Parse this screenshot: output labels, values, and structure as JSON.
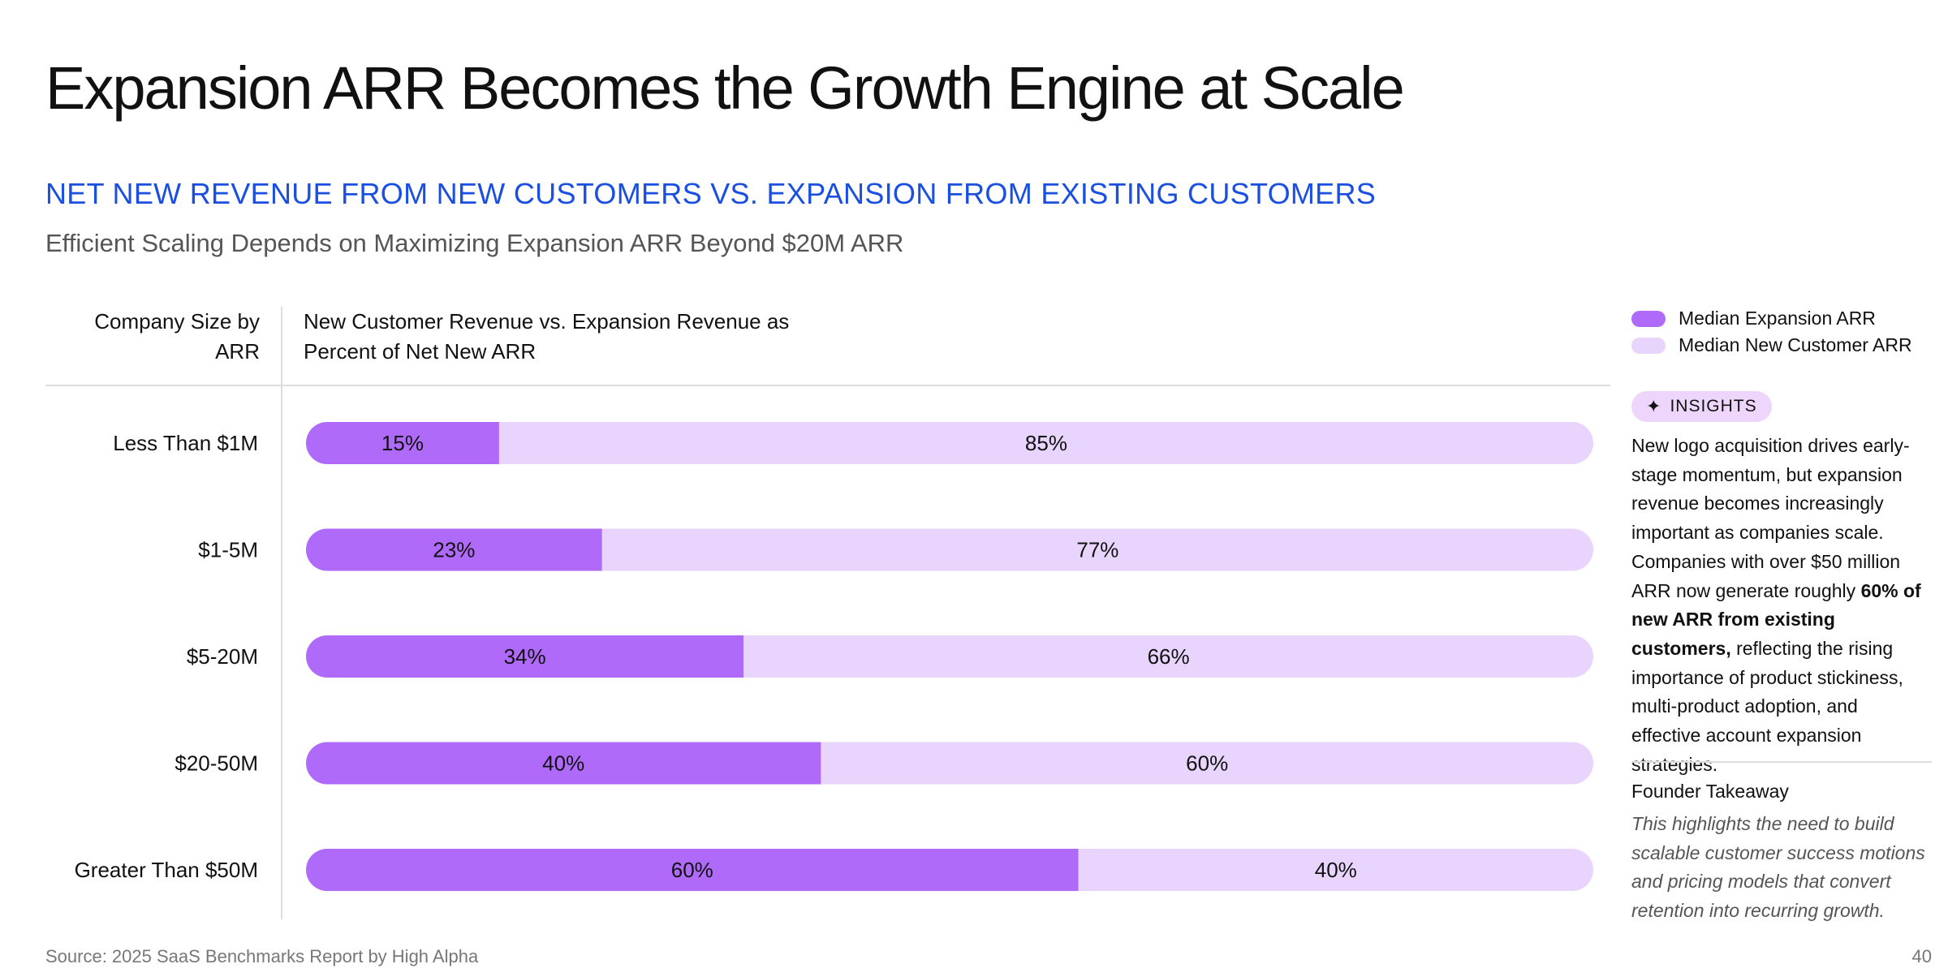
{
  "header": {
    "title": "Expansion ARR Becomes the Growth Engine at Scale",
    "subtitle": "NET NEW REVENUE FROM NEW CUSTOMERS VS. EXPANSION FROM EXISTING CUSTOMERS",
    "tagline": "Efficient Scaling Depends on Maximizing Expansion ARR Beyond $20M ARR"
  },
  "columns": {
    "left": "Company Size by ARR",
    "right": "New Customer Revenue vs. Expansion Revenue as Percent of Net New ARR"
  },
  "colors": {
    "expansion": "#b06af9",
    "new_customer": "#e8d4fc",
    "subtitle_blue": "#1a4fe0"
  },
  "chart_data": {
    "type": "bar",
    "stacked": true,
    "orientation": "horizontal",
    "unit": "percent",
    "categories": [
      "Less Than  $1M",
      "$1-5M",
      "$5-20M",
      "$20-50M",
      "Greater Than $50M"
    ],
    "series": [
      {
        "name": "Median Expansion ARR",
        "values": [
          15,
          23,
          34,
          40,
          60
        ]
      },
      {
        "name": "Median New Customer ARR",
        "values": [
          85,
          77,
          66,
          60,
          40
        ]
      }
    ],
    "xlim": [
      0,
      100
    ]
  },
  "legend": [
    {
      "label": "Median Expansion ARR"
    },
    {
      "label": "Median New Customer ARR"
    }
  ],
  "insights": {
    "badge": "INSIGHTS",
    "text_part1": "New logo acquisition drives early-stage momentum, but expansion revenue becomes increasingly important as companies scale. Companies with over $50 million ARR now generate roughly ",
    "text_bold": "60% of new ARR from existing customers,",
    "text_part2": " reflecting the rising importance of product stickiness, multi-product adoption, and effective account expansion strategies."
  },
  "takeaway": {
    "title": "Founder Takeaway",
    "text": "This highlights the need to build scalable customer success motions and pricing models that convert retention into recurring growth."
  },
  "footer": {
    "source": "Source: 2025 SaaS Benchmarks Report by High Alpha",
    "page": "40"
  }
}
